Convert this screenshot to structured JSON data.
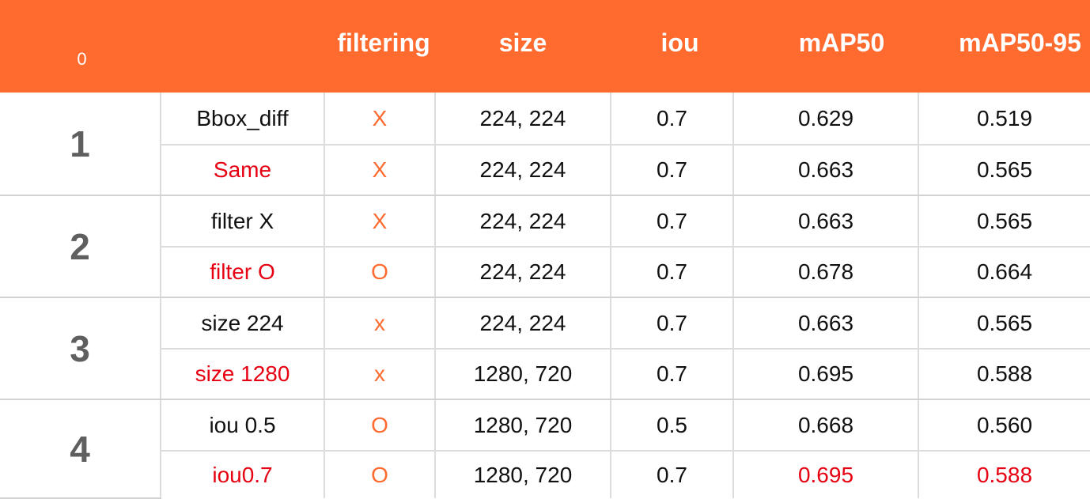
{
  "header": {
    "corner": "0",
    "columns": [
      "filtering",
      "size",
      "iou",
      "mAP50",
      "mAP50-95"
    ]
  },
  "colors": {
    "header_bg": "#ff6a2f",
    "header_text": "#ffffff",
    "filtering_mark": "#ff6a2f",
    "highlight_red": "#e60012",
    "group_number": "#5f5f5f"
  },
  "groups": [
    {
      "number": "1",
      "rows": [
        {
          "label": "Bbox_diff",
          "filtering": "X",
          "size": "224, 224",
          "iou": "0.7",
          "map50": "0.629",
          "map5095": "0.519"
        },
        {
          "label": "Same",
          "filtering": "X",
          "size": "224, 224",
          "iou": "0.7",
          "map50": "0.663",
          "map5095": "0.565"
        }
      ]
    },
    {
      "number": "2",
      "rows": [
        {
          "label": "filter X",
          "filtering": "X",
          "size": "224, 224",
          "iou": "0.7",
          "map50": "0.663",
          "map5095": "0.565"
        },
        {
          "label": "filter O",
          "filtering": "O",
          "size": "224, 224",
          "iou": "0.7",
          "map50": "0.678",
          "map5095": "0.664"
        }
      ]
    },
    {
      "number": "3",
      "rows": [
        {
          "label": "size 224",
          "filtering": "x",
          "size": "224, 224",
          "iou": "0.7",
          "map50": "0.663",
          "map5095": "0.565"
        },
        {
          "label": "size 1280",
          "filtering": "x",
          "size": "1280, 720",
          "iou": "0.7",
          "map50": "0.695",
          "map5095": "0.588"
        }
      ]
    },
    {
      "number": "4",
      "rows": [
        {
          "label": "iou 0.5",
          "filtering": "O",
          "size": "1280, 720",
          "iou": "0.5",
          "map50": "0.668",
          "map5095": "0.560"
        },
        {
          "label": "iou0.7",
          "filtering": "O",
          "size": "1280, 720",
          "iou": "0.7",
          "map50": "0.695",
          "map5095": "0.588"
        }
      ]
    }
  ]
}
